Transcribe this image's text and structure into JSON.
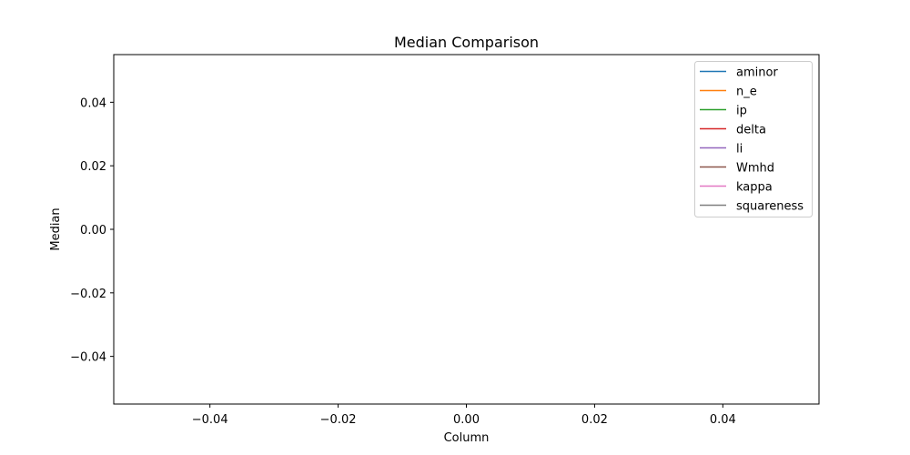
{
  "chart_data": {
    "type": "line",
    "title": "Median Comparison",
    "xlabel": "Column",
    "ylabel": "Median",
    "xlim": [
      -0.055,
      0.055
    ],
    "ylim": [
      -0.055,
      0.055
    ],
    "x_ticks": [
      -0.04,
      -0.02,
      0.0,
      0.02,
      0.04
    ],
    "x_tick_labels": [
      "−0.04",
      "−0.02",
      "0.00",
      "0.02",
      "0.04"
    ],
    "y_ticks": [
      0.04,
      0.02,
      0.0,
      -0.02,
      -0.04
    ],
    "y_tick_labels": [
      "0.04",
      "0.02",
      "0.00",
      "−0.02",
      "−0.04"
    ],
    "grid": false,
    "legend_position": "top-right",
    "series": [
      {
        "name": "aminor",
        "color": "#1f77b4",
        "values": []
      },
      {
        "name": "n_e",
        "color": "#ff7f0e",
        "values": []
      },
      {
        "name": "ip",
        "color": "#2ca02c",
        "values": []
      },
      {
        "name": "delta",
        "color": "#d62728",
        "values": []
      },
      {
        "name": "li",
        "color": "#9467bd",
        "values": []
      },
      {
        "name": "Wmhd",
        "color": "#8c564b",
        "values": []
      },
      {
        "name": "kappa",
        "color": "#e377c2",
        "values": []
      },
      {
        "name": "squareness",
        "color": "#7f7f7f",
        "values": []
      }
    ]
  }
}
